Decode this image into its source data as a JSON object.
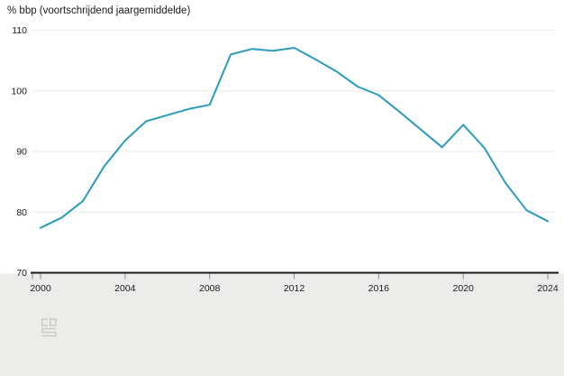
{
  "chart_data": {
    "type": "line",
    "title": "% bbp (voortschrijdend jaargemiddelde)",
    "x": [
      2000,
      2001,
      2002,
      2003,
      2004,
      2005,
      2006,
      2007,
      2008,
      2009,
      2010,
      2011,
      2012,
      2013,
      2014,
      2015,
      2016,
      2017,
      2018,
      2019,
      2020,
      2021,
      2022,
      2023,
      2024
    ],
    "series": [
      {
        "name": "% bbp (voortschrijdend jaargemiddelde)",
        "values": [
          77.4,
          79.1,
          81.8,
          87.5,
          91.8,
          95.0,
          96.0,
          97.0,
          97.7,
          106.0,
          106.9,
          106.6,
          107.1,
          105.2,
          103.2,
          100.7,
          99.3,
          96.5,
          93.6,
          90.7,
          94.4,
          90.6,
          84.8,
          80.3,
          78.5
        ]
      }
    ],
    "xlabel": "",
    "ylabel": "% bbp (voortschrijdend jaargemiddelde)",
    "ylim": [
      70,
      110
    ],
    "yticks": [
      110,
      100,
      90,
      80,
      70
    ],
    "xticks": [
      2000,
      2004,
      2008,
      2012,
      2016,
      2020,
      2024
    ],
    "grid": true,
    "legend": false,
    "colors": {
      "line": "#2a9bbc",
      "grid": "#e8e8e8",
      "axis": "#1a1a1a",
      "text": "#1a1a1a",
      "tick": "#8c8c8c",
      "footer_bg": "#ececea",
      "logo": "#c9c9c7",
      "background": "#ffffff"
    },
    "source_logo": "cbs-logo"
  }
}
